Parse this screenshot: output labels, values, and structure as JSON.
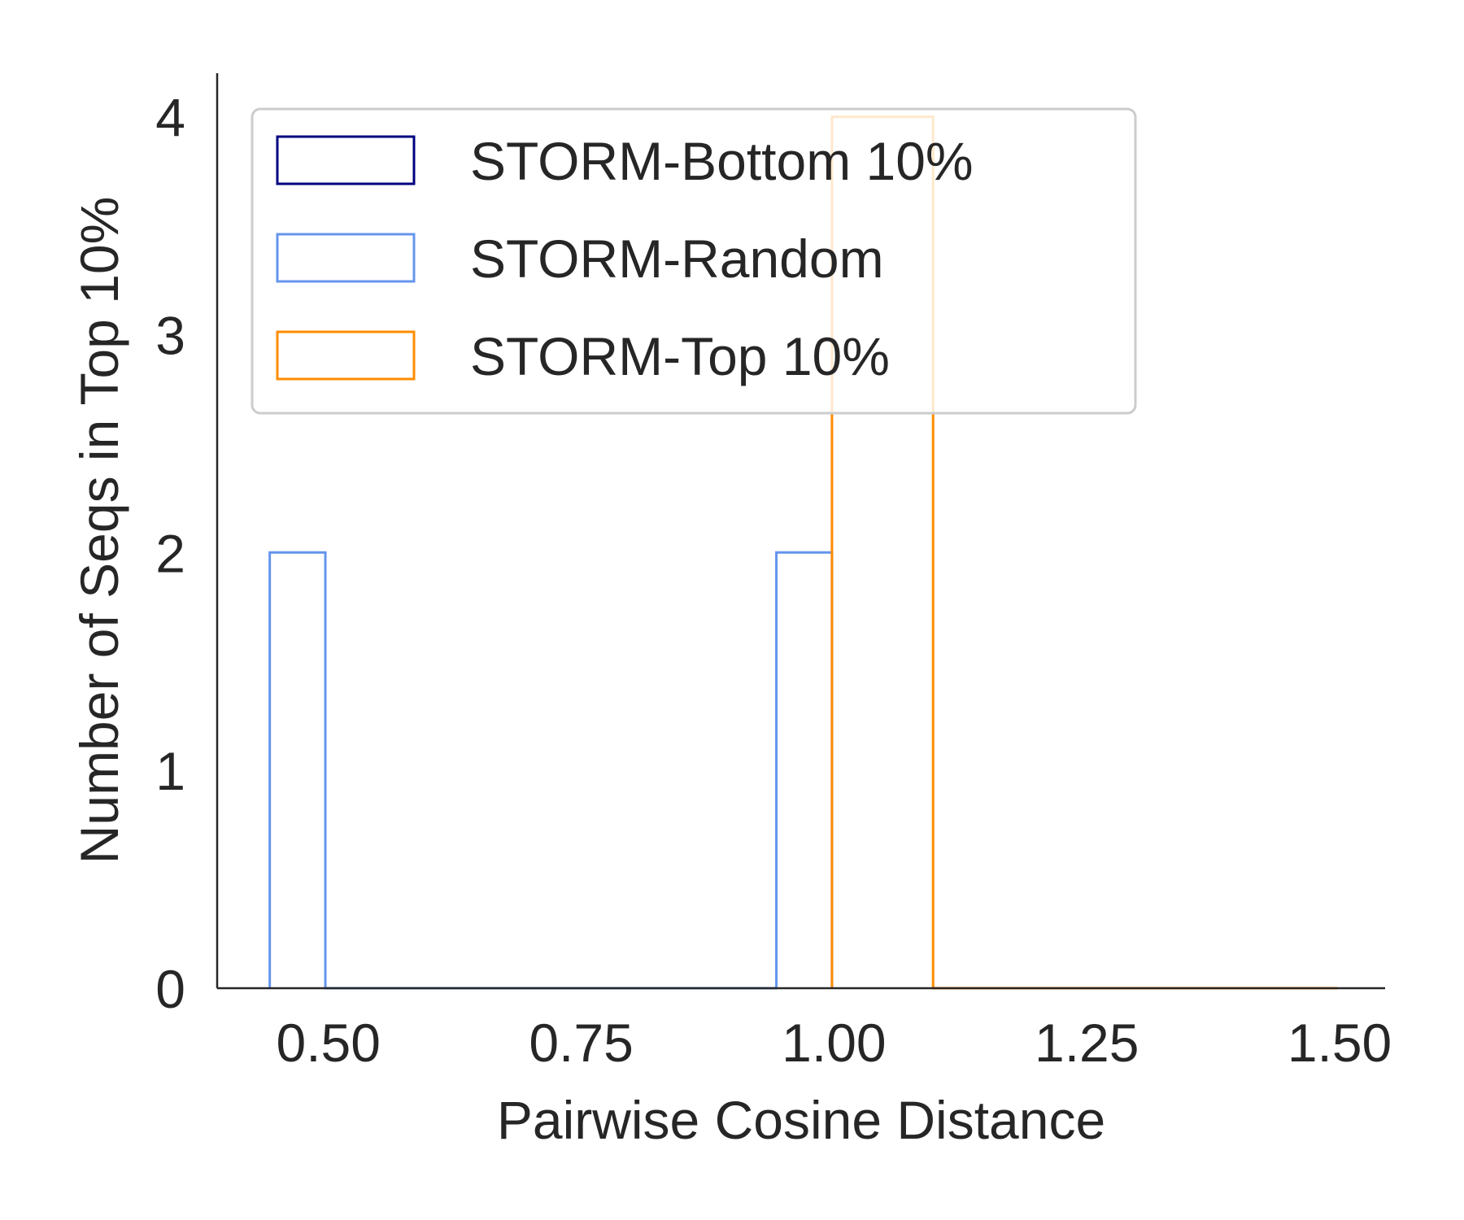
{
  "chart_data": {
    "type": "bar",
    "xlabel": "Pairwise Cosine Distance",
    "ylabel": "Number of Seqs in Top 10%",
    "xlim": [
      0.39,
      1.545
    ],
    "ylim": [
      0,
      4.2
    ],
    "x_ticks": [
      "0.50",
      "0.75",
      "1.00",
      "1.25",
      "1.50"
    ],
    "x_tick_values": [
      0.5,
      0.75,
      1.0,
      1.25,
      1.5
    ],
    "y_ticks": [
      "0",
      "1",
      "2",
      "3",
      "4"
    ],
    "y_tick_values": [
      0,
      1,
      2,
      3,
      4
    ],
    "grid": false,
    "legend_position": "top-left",
    "histtype": "step",
    "series": [
      {
        "name": "STORM-Bottom 10%",
        "color": "#000080",
        "bins": [],
        "counts": []
      },
      {
        "name": "STORM-Random",
        "color": "#6495ed",
        "bins": [
          0.442,
          0.497,
          0.552,
          0.607,
          0.662,
          0.717,
          0.772,
          0.827,
          0.882,
          0.943,
          0.998
        ],
        "counts": [
          2,
          0,
          0,
          0,
          0,
          0,
          0,
          0,
          0,
          2
        ]
      },
      {
        "name": "STORM-Top 10%",
        "color": "#ff8c00",
        "bins": [
          0.998,
          1.098,
          1.198,
          1.298,
          1.398,
          1.498
        ],
        "counts": [
          4,
          0,
          0,
          0,
          0
        ]
      }
    ]
  }
}
